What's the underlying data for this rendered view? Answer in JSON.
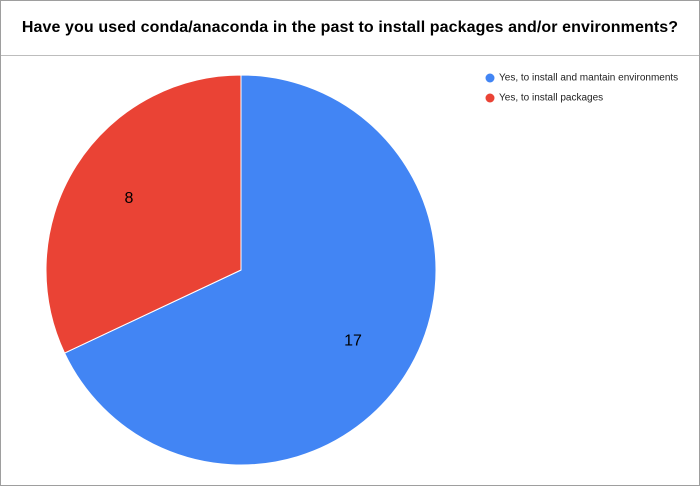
{
  "chart_data": {
    "type": "pie",
    "title": "Have you used conda/anaconda in the past to install packages and/or environments?",
    "legend_position": "top-right",
    "slices": [
      {
        "label": "Yes, to install and mantain environments",
        "value": 17,
        "color": "#4285f4"
      },
      {
        "label": "Yes, to install packages",
        "value": 8,
        "color": "#ea4335"
      }
    ]
  }
}
